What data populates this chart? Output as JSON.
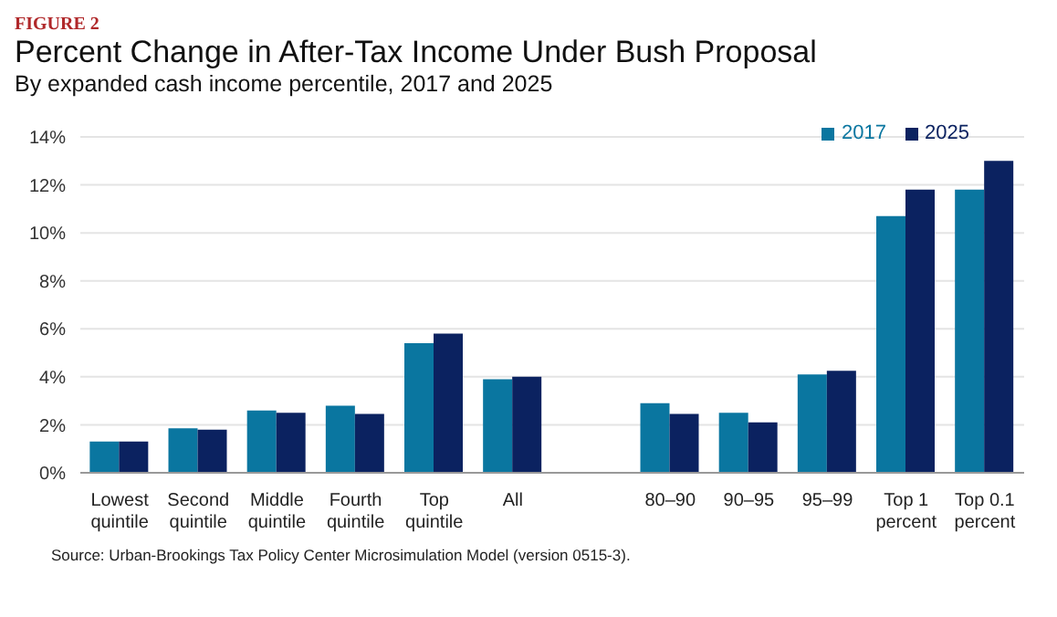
{
  "chart_data": {
    "type": "bar",
    "title": "Percent Change in After-Tax Income Under Bush Proposal",
    "subtitle": "By expanded cash income percentile, 2017 and 2025",
    "categories": [
      "Lowest quintile",
      "Second quintile",
      "Middle quintile",
      "Fourth quintile",
      "Top quintile",
      "All",
      null,
      "80–90",
      "90–95",
      "95–99",
      "Top 1 percent",
      "Top 0.1 percent"
    ],
    "series": [
      {
        "name": "2017",
        "color": "#0a76a0",
        "values": [
          1.3,
          1.85,
          2.6,
          2.8,
          5.4,
          3.9,
          null,
          2.9,
          2.5,
          4.1,
          10.7,
          11.8
        ]
      },
      {
        "name": "2025",
        "color": "#0b2260",
        "values": [
          1.3,
          1.8,
          2.5,
          2.45,
          5.8,
          4.0,
          null,
          2.45,
          2.1,
          4.25,
          11.8,
          13.0
        ]
      }
    ],
    "ylim": [
      0,
      14
    ],
    "yticks": [
      {
        "value": 0,
        "label": "0%"
      },
      {
        "value": 2,
        "label": "2%"
      },
      {
        "value": 4,
        "label": "4%"
      },
      {
        "value": 6,
        "label": "6%"
      },
      {
        "value": 8,
        "label": "8%"
      },
      {
        "value": 10,
        "label": "10%"
      },
      {
        "value": 12,
        "label": "12%"
      },
      {
        "value": 14,
        "label": "14%"
      }
    ],
    "grid": "y",
    "legend": "top right",
    "annotations": [
      "FIGURE 2",
      "Source: Urban-Brookings Tax Policy Center Microsimulation Model (version 0515-3)."
    ]
  }
}
